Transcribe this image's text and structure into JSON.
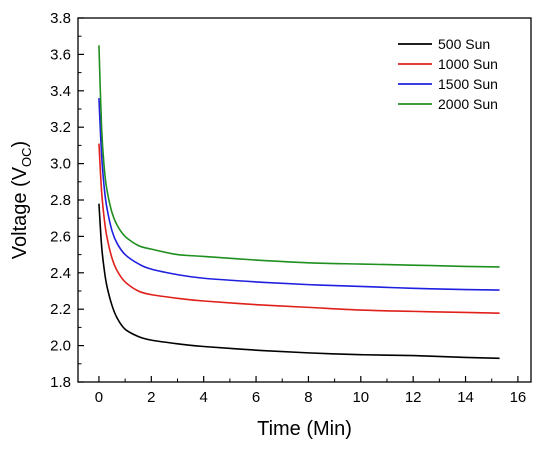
{
  "chart_data": {
    "type": "line",
    "xlabel": "Time (Min)",
    "ylabel": "Voltage (V",
    "ylabel_sub": "OC",
    "ylabel_close": ")",
    "xlim": [
      -0.8,
      16.5
    ],
    "ylim": [
      1.8,
      3.8
    ],
    "xticks": [
      0,
      2,
      4,
      6,
      8,
      10,
      12,
      14,
      16
    ],
    "yticks": [
      1.8,
      2.0,
      2.2,
      2.4,
      2.6,
      2.8,
      3.0,
      3.2,
      3.4,
      3.6,
      3.8
    ],
    "ytick_labels": [
      "1.8",
      "2.0",
      "2.2",
      "2.4",
      "2.6",
      "2.8",
      "3.0",
      "3.2",
      "3.4",
      "3.6",
      "3.8"
    ],
    "grid": false,
    "legend_position": "top-right",
    "series": [
      {
        "name": "500 Sun",
        "color": "#000000",
        "x": [
          0,
          0.1,
          0.2,
          0.3,
          0.5,
          0.7,
          1.0,
          1.5,
          2.0,
          3.0,
          4.0,
          6.0,
          8.0,
          10.0,
          12.0,
          14.0,
          15.3
        ],
        "y": [
          2.78,
          2.55,
          2.42,
          2.33,
          2.22,
          2.15,
          2.09,
          2.05,
          2.03,
          2.01,
          1.995,
          1.975,
          1.96,
          1.95,
          1.945,
          1.935,
          1.93
        ]
      },
      {
        "name": "1000 Sun",
        "color": "#e0201b",
        "x": [
          0,
          0.1,
          0.2,
          0.3,
          0.5,
          0.7,
          1.0,
          1.5,
          2.0,
          3.0,
          4.0,
          6.0,
          8.0,
          10.0,
          12.0,
          14.0,
          15.3
        ],
        "y": [
          3.11,
          2.85,
          2.7,
          2.6,
          2.48,
          2.41,
          2.35,
          2.3,
          2.28,
          2.26,
          2.245,
          2.225,
          2.21,
          2.195,
          2.188,
          2.182,
          2.178
        ]
      },
      {
        "name": "1500 Sun",
        "color": "#1f1fe0",
        "x": [
          0,
          0.1,
          0.2,
          0.3,
          0.5,
          0.7,
          1.0,
          1.5,
          2.0,
          3.0,
          4.0,
          6.0,
          8.0,
          10.0,
          12.0,
          14.0,
          15.3
        ],
        "y": [
          3.36,
          3.05,
          2.87,
          2.76,
          2.63,
          2.56,
          2.5,
          2.45,
          2.42,
          2.39,
          2.37,
          2.35,
          2.335,
          2.325,
          2.315,
          2.308,
          2.305
        ]
      },
      {
        "name": "2000 Sun",
        "color": "#1f8f1f",
        "x": [
          0,
          0.1,
          0.2,
          0.3,
          0.5,
          0.7,
          1.0,
          1.5,
          2.0,
          3.0,
          4.0,
          6.0,
          8.0,
          10.0,
          12.0,
          14.0,
          15.3
        ],
        "y": [
          3.65,
          3.2,
          2.98,
          2.86,
          2.73,
          2.66,
          2.6,
          2.55,
          2.53,
          2.5,
          2.49,
          2.47,
          2.455,
          2.448,
          2.442,
          2.435,
          2.432
        ]
      }
    ]
  }
}
